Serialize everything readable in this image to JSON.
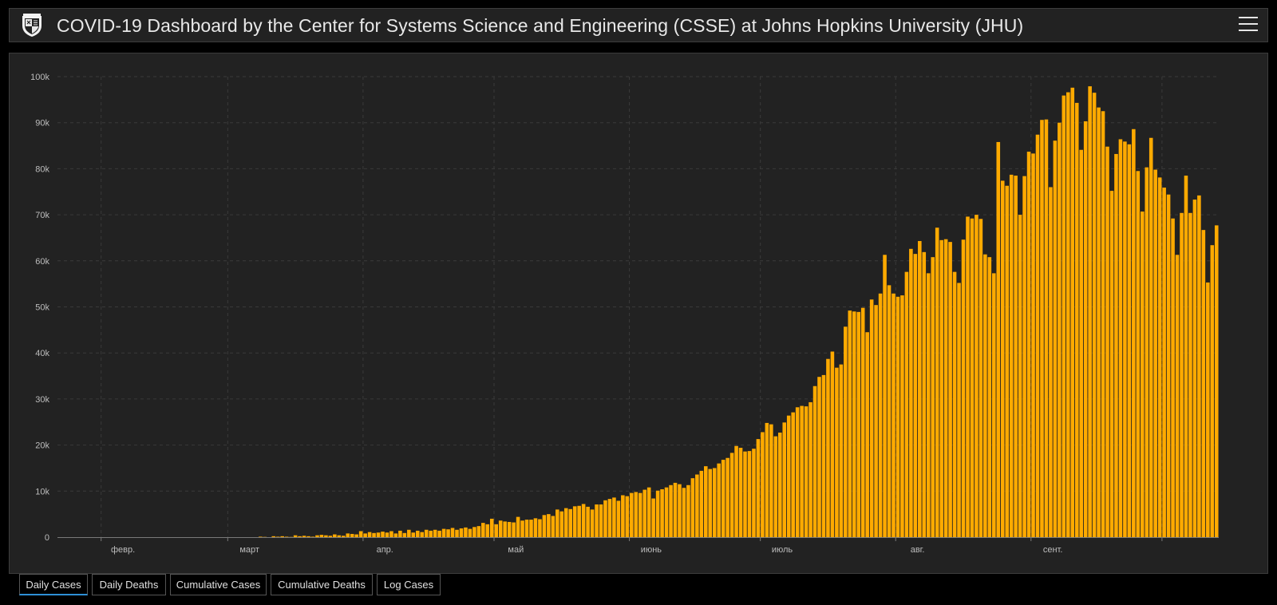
{
  "header": {
    "title": "COVID-19 Dashboard by the Center for Systems Science and Engineering (CSSE) at Johns Hopkins University (JHU)"
  },
  "colors": {
    "bar": "#ffaa00",
    "panel": "#222222",
    "background": "#000000",
    "active_tab_underline": "#2e8fd6"
  },
  "tabs": [
    {
      "label": "Daily Cases",
      "active": true
    },
    {
      "label": "Daily Deaths",
      "active": false
    },
    {
      "label": "Cumulative Cases",
      "active": false
    },
    {
      "label": "Cumulative Deaths",
      "active": false
    },
    {
      "label": "Log Cases",
      "active": false
    }
  ],
  "chart_data": {
    "type": "bar",
    "title": "",
    "xlabel": "",
    "ylabel": "",
    "ylim": [
      0,
      100000
    ],
    "grid": true,
    "y_ticks": [
      {
        "value": 0,
        "label": "0"
      },
      {
        "value": 10000,
        "label": "10k"
      },
      {
        "value": 20000,
        "label": "20k"
      },
      {
        "value": 30000,
        "label": "30k"
      },
      {
        "value": 40000,
        "label": "40k"
      },
      {
        "value": 50000,
        "label": "50k"
      },
      {
        "value": 60000,
        "label": "60k"
      },
      {
        "value": 70000,
        "label": "70k"
      },
      {
        "value": 80000,
        "label": "80k"
      },
      {
        "value": 90000,
        "label": "90k"
      },
      {
        "value": 100000,
        "label": "100k"
      }
    ],
    "x_start": "2020-01-22",
    "x_ticks": [
      {
        "label": "февр.",
        "day": 15
      },
      {
        "label": "март",
        "day": 44
      },
      {
        "label": "апр.",
        "day": 75
      },
      {
        "label": "май",
        "day": 105
      },
      {
        "label": "июнь",
        "day": 136
      },
      {
        "label": "июль",
        "day": 166
      },
      {
        "label": "авг.",
        "day": 197
      },
      {
        "label": "сент.",
        "day": 228
      }
    ],
    "x_gridlines_day": [
      10,
      39,
      70,
      100,
      131,
      161,
      192,
      223,
      253
    ],
    "series": [
      {
        "values": [
          0,
          0,
          0,
          0,
          0,
          0,
          0,
          0,
          0,
          0,
          0,
          0,
          0,
          0,
          0,
          0,
          0,
          0,
          0,
          0,
          0,
          0,
          0,
          0,
          0,
          0,
          0,
          0,
          0,
          0,
          0,
          0,
          0,
          0,
          0,
          0,
          0,
          0,
          0,
          0,
          0,
          0,
          0,
          0,
          0,
          0,
          100,
          50,
          0,
          200,
          100,
          200,
          100,
          50,
          400,
          200,
          300,
          200,
          100,
          400,
          500,
          400,
          300,
          600,
          400,
          300,
          800,
          700,
          600,
          1300,
          800,
          1100,
          900,
          1000,
          1200,
          1000,
          1300,
          800,
          1400,
          900,
          1600,
          1000,
          1400,
          1100,
          1600,
          1400,
          1600,
          1400,
          1800,
          1700,
          2000,
          1600,
          1900,
          2100,
          1800,
          2200,
          2400,
          3100,
          2800,
          4000,
          2800,
          3600,
          3400,
          3300,
          3200,
          4400,
          3600,
          3800,
          3800,
          4100,
          3900,
          4800,
          5000,
          4600,
          6000,
          5600,
          6300,
          6100,
          6700,
          6800,
          7200,
          6600,
          6000,
          7100,
          7100,
          8000,
          8300,
          8600,
          7900,
          9100,
          8900,
          9600,
          9800,
          9600,
          10300,
          10800,
          8400,
          10100,
          10400,
          10800,
          11300,
          11800,
          11500,
          10700,
          11300,
          12800,
          13600,
          14400,
          15400,
          14800,
          15000,
          16000,
          16800,
          17200,
          18300,
          19800,
          19400,
          18600,
          18700,
          19200,
          21300,
          22800,
          24800,
          24500,
          21900,
          22700,
          24900,
          26400,
          27100,
          28200,
          28500,
          28400,
          29300,
          32800,
          34800,
          35200,
          38700,
          40300,
          36800,
          37500,
          45700,
          49200,
          49000,
          48900,
          49800,
          44500,
          51600,
          50400,
          52900,
          61300,
          54700,
          52900,
          52200,
          52500,
          57600,
          62600,
          61500,
          64300,
          61900,
          57300,
          60800,
          67200,
          64500,
          64700,
          64100,
          57600,
          55200,
          64600,
          69600,
          69200,
          70000,
          69100,
          61400,
          60800,
          57300,
          85800,
          77400,
          76300,
          78700,
          78500,
          70000,
          78400,
          83700,
          83300,
          87400,
          90600,
          90700,
          76000,
          86100,
          90000,
          95900,
          96600,
          97600,
          94300,
          84100,
          90300,
          97900,
          96500,
          93300,
          92500,
          84800,
          75200,
          83200,
          86400,
          85900,
          85300,
          88600,
          79500,
          70700,
          80300,
          86700,
          79800,
          78100,
          75900,
          74400,
          69200,
          61300,
          70400,
          78500,
          70400,
          73300,
          74200,
          66700,
          55300,
          63400,
          67700
        ]
      }
    ]
  }
}
